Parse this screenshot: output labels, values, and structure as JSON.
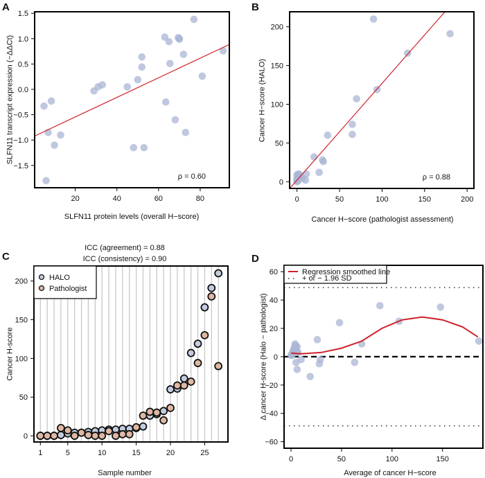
{
  "colors": {
    "point": "#a9b6d4",
    "regression": "#d0202a",
    "halo": "#c3cde0",
    "pathologist": "#dfb8a3",
    "grid": "#c8c8c8"
  },
  "chart_data": [
    {
      "panel_label": "A",
      "type": "scatter",
      "xlabel": "SLFN11 protein levels (overall H−score)",
      "ylabel": "SLFN11 transcript expression (−ΔΔCt)",
      "xlim": [
        0.5,
        94
      ],
      "ylim": [
        -1.94,
        1.53
      ],
      "xticks": [
        20,
        40,
        60,
        80
      ],
      "xtick_labels": [
        "20",
        "40",
        "60",
        "80"
      ],
      "yticks": [
        -1.5,
        -1.0,
        -0.5,
        0,
        0.5,
        1.0,
        1.5
      ],
      "ytick_labels": [
        "−1.5",
        "−1.0",
        "−0.5",
        "0.0",
        "0.5",
        "1.0",
        "1.5"
      ],
      "x": [
        5,
        8.5,
        7,
        13,
        10,
        6,
        29,
        31,
        33,
        45,
        50,
        52,
        52,
        48,
        53,
        63,
        65,
        69.5,
        70,
        70,
        72,
        65.5,
        63.5,
        68,
        73,
        77,
        81,
        91
      ],
      "y": [
        -0.33,
        -0.23,
        -0.85,
        -0.9,
        -1.1,
        -1.8,
        -0.03,
        0.05,
        0.09,
        0.05,
        0.19,
        0.64,
        0.44,
        -1.15,
        -1.15,
        1.03,
        0.94,
        1.02,
        1.0,
        0.99,
        0.69,
        0.51,
        -0.25,
        -0.6,
        -0.85,
        1.38,
        0.26,
        0.76
      ],
      "regression_line": {
        "intercept": -0.93,
        "slope": 0.0193
      },
      "annotation": "ρ = 0.60"
    },
    {
      "panel_label": "B",
      "type": "scatter",
      "xlabel": "Cancer H−score (pathologist assessment)",
      "ylabel": "Cancer H−score (HALO)",
      "xlim": [
        -8.7,
        208
      ],
      "ylim": [
        -8.7,
        219.4
      ],
      "xticks": [
        0,
        50,
        100,
        150,
        200
      ],
      "xtick_labels": [
        "0",
        "50",
        "100",
        "150",
        "200"
      ],
      "yticks": [
        0,
        50,
        100,
        150,
        200
      ],
      "ytick_labels": [
        "0",
        "50",
        "100",
        "150",
        "200"
      ],
      "x": [
        90,
        180,
        130,
        94,
        70,
        65,
        65,
        36,
        20,
        30,
        31,
        26,
        11,
        10,
        6,
        0,
        0,
        0,
        1,
        2,
        3,
        0,
        1,
        2,
        5,
        0,
        1
      ],
      "y": [
        210,
        191,
        166,
        119,
        107,
        74,
        61,
        60,
        32,
        28,
        26,
        12,
        10,
        2,
        4,
        0,
        2,
        5,
        8,
        10,
        9,
        9,
        3,
        7,
        6,
        1,
        1
      ],
      "regression_line": {
        "intercept": 2,
        "slope": 1.25
      },
      "annotation": "ρ = 0.88"
    },
    {
      "panel_label": "C",
      "type": "scatter",
      "title_lines": [
        "ICC (agreement) = 0.88",
        "ICC (consistency) = 0.90"
      ],
      "xlabel": "Sample number",
      "ylabel": "Cancer H-score",
      "xlim": [
        0.06,
        28.4
      ],
      "ylim": [
        -8,
        219.4
      ],
      "xticks": [
        1,
        5,
        10,
        15,
        20,
        25
      ],
      "xtick_labels": [
        "1",
        "5",
        "10",
        "15",
        "20",
        "25"
      ],
      "yticks": [
        0,
        50,
        100,
        150,
        200
      ],
      "ytick_labels": [
        "0",
        "50",
        "100",
        "150",
        "200"
      ],
      "grid": "vertical",
      "categories": [
        1,
        2,
        3,
        4,
        5,
        6,
        7,
        8,
        9,
        10,
        11,
        12,
        13,
        14,
        15,
        16,
        17,
        18,
        19,
        20,
        21,
        22,
        23,
        24,
        25,
        26,
        27
      ],
      "series": [
        {
          "name": "HALO",
          "values": [
            0,
            0,
            0,
            1,
            3,
            4,
            4,
            5,
            6,
            7,
            8,
            8,
            9,
            9,
            10,
            12,
            26,
            28,
            32,
            60,
            61,
            74,
            107,
            119,
            166,
            191,
            210
          ]
        },
        {
          "name": "Pathologist",
          "values": [
            0,
            0,
            0,
            10,
            7,
            0,
            4,
            1,
            0,
            0,
            6,
            0,
            2,
            2,
            11,
            26,
            31,
            30,
            20,
            36,
            65,
            65,
            70,
            94,
            130,
            180,
            90
          ]
        }
      ],
      "legend": "top-left"
    },
    {
      "panel_label": "D",
      "type": "scatter",
      "xlabel": "Average of cancer H−score",
      "ylabel": "Δ cancer H-score (Halo − pathologist)",
      "xlim": [
        -6.9,
        190
      ],
      "ylim": [
        -64.6,
        64.5
      ],
      "xticks": [
        0,
        50,
        100,
        150
      ],
      "xtick_labels": [
        "0",
        "50",
        "100",
        "150"
      ],
      "yticks": [
        -60,
        -40,
        -20,
        0,
        20,
        40,
        60
      ],
      "ytick_labels": [
        "−60",
        "−40",
        "−20",
        "0",
        "20",
        "40",
        "60"
      ],
      "x": [
        0,
        1,
        2,
        3,
        4,
        4,
        5,
        6,
        6,
        7,
        5,
        6,
        10,
        19,
        26,
        29,
        28,
        48,
        63,
        70,
        88,
        107,
        148,
        186,
        3,
        1
      ],
      "y": [
        1,
        1,
        4,
        6,
        8,
        9,
        7,
        7,
        3,
        3,
        -4,
        -9,
        -2,
        -14,
        12,
        -2,
        -5,
        24,
        -4,
        9,
        36,
        25,
        35,
        11,
        5,
        2
      ],
      "smooth_line": {
        "x": [
          0,
          10,
          30,
          50,
          70,
          90,
          110,
          130,
          150,
          170,
          185
        ],
        "y": [
          2.5,
          2,
          3,
          6,
          11,
          20,
          26,
          28,
          26,
          21,
          14
        ]
      },
      "reference_line": 0,
      "limits_of_agreement": [
        48.8,
        -48.8
      ],
      "legend_entries": [
        "Regression smoothed line",
        "+ or − 1.96 SD"
      ],
      "legend": "top-left"
    }
  ]
}
